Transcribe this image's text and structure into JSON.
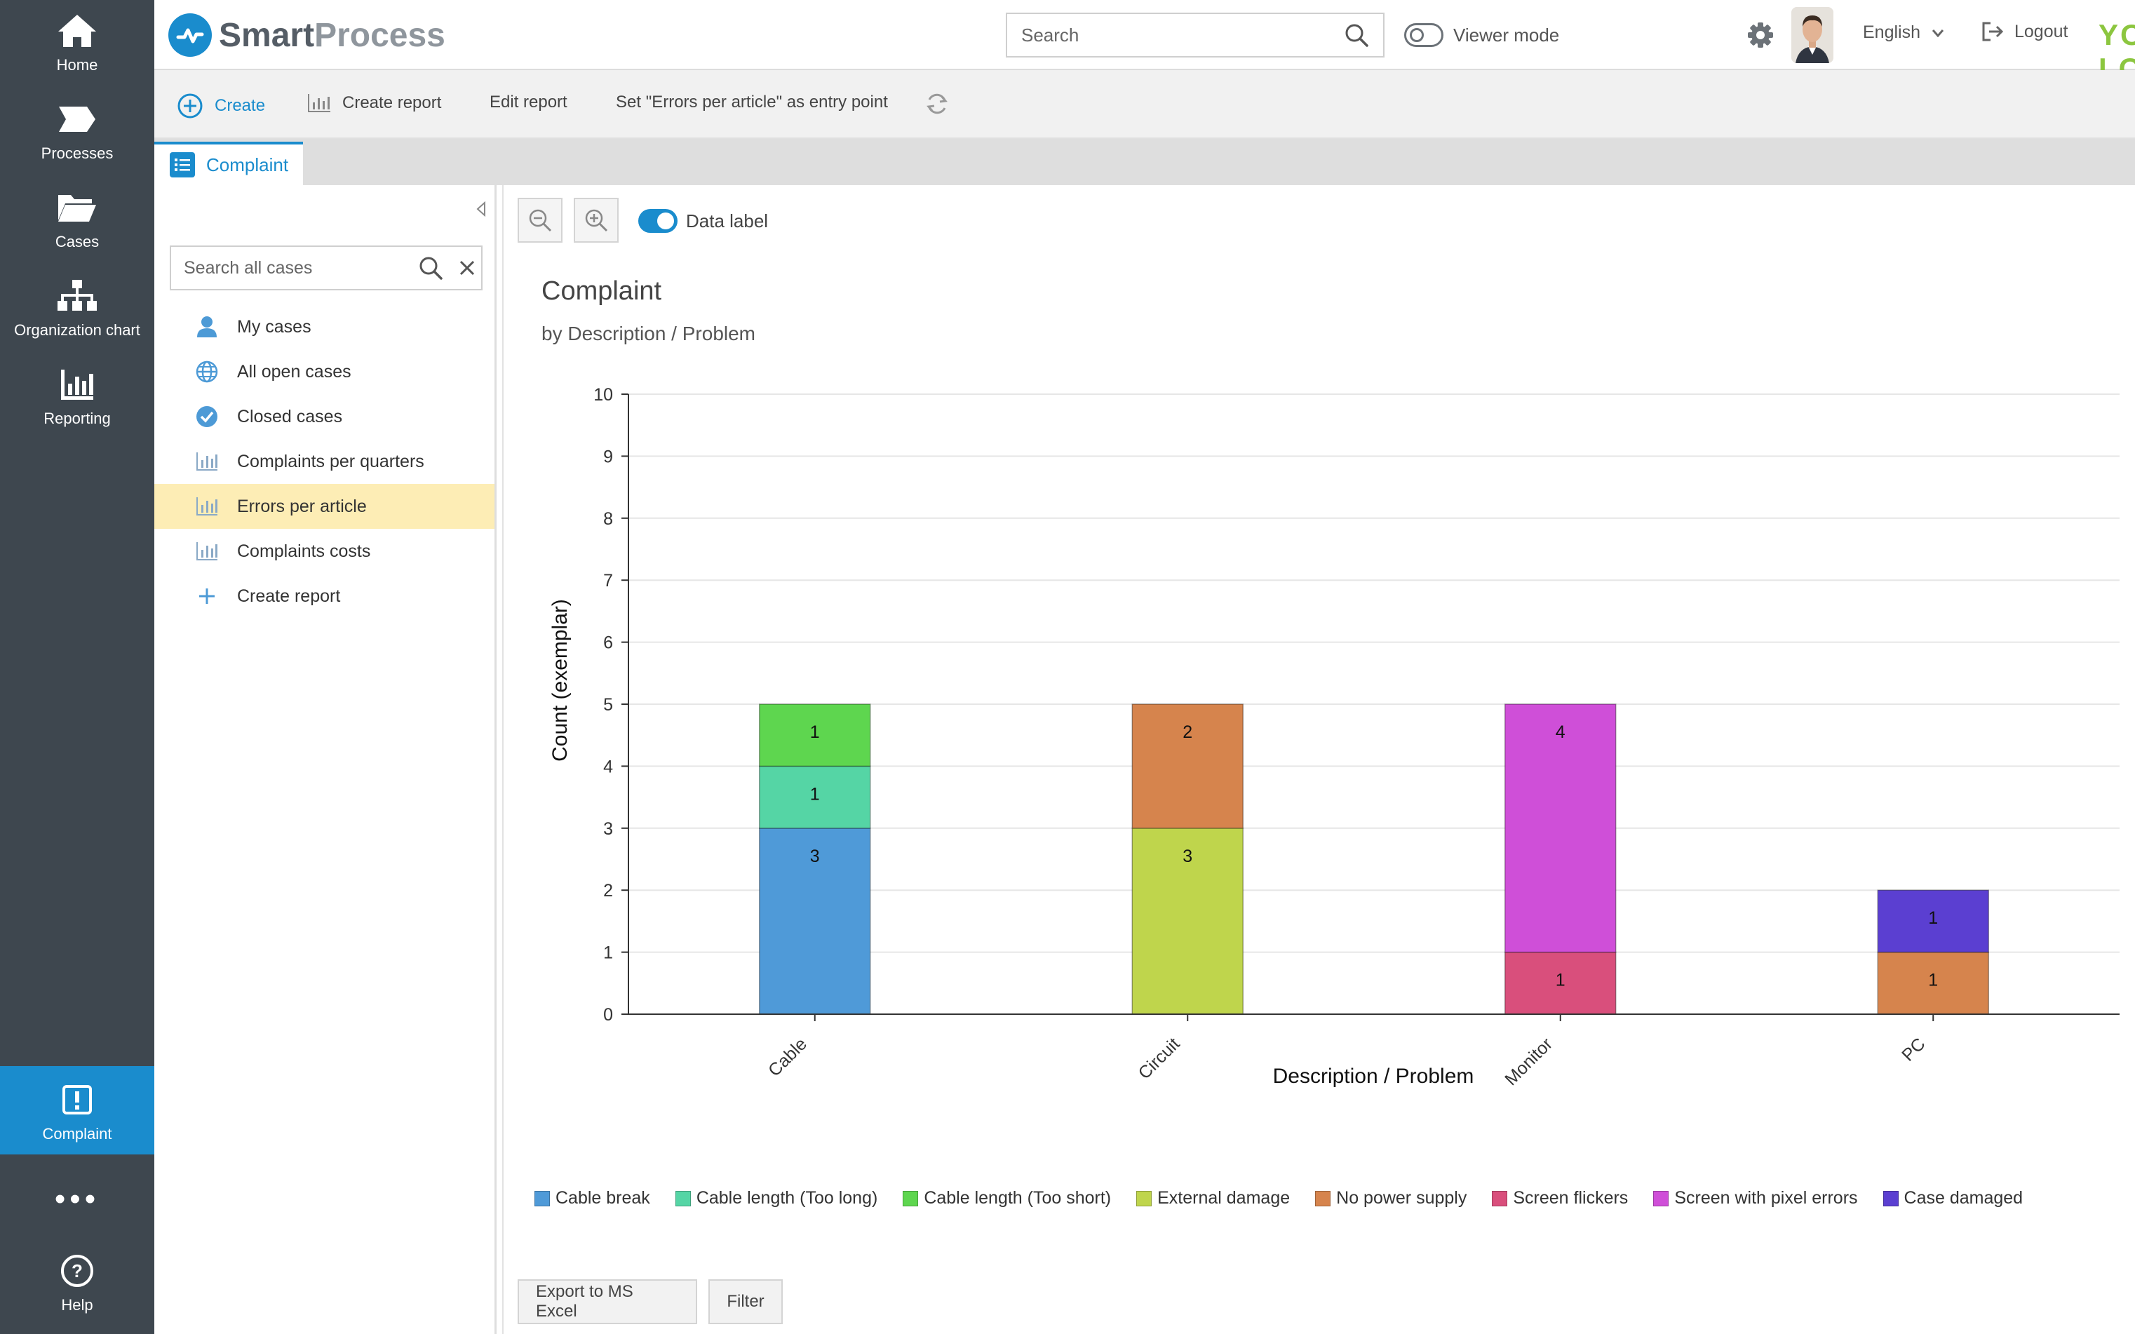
{
  "nav": {
    "items": [
      {
        "label": "Home",
        "icon": "home-icon"
      },
      {
        "label": "Processes",
        "icon": "process-arrow-icon"
      },
      {
        "label": "Cases",
        "icon": "folder-icon"
      },
      {
        "label": "Organization chart",
        "icon": "org-chart-icon"
      },
      {
        "label": "Reporting",
        "icon": "bar-chart-icon"
      }
    ],
    "active_item": {
      "label": "Complaint",
      "icon": "exclamation-icon"
    },
    "more_label": "•••",
    "help_label": "Help",
    "active_color": "#1a8ccd",
    "bg_color": "#3e474f"
  },
  "header": {
    "brand_smart": "Smart",
    "brand_process": "Process",
    "search_placeholder": "Search",
    "viewer_mode_label": "Viewer mode",
    "language": "English",
    "logout_label": "Logout",
    "logo_text": "YOUR LOGO",
    "logo_color": "#8cc63f"
  },
  "toolbar": {
    "create_label": "Create",
    "create_report_label": "Create report",
    "edit_report_label": "Edit report",
    "entry_point_label": "Set \"Errors per article\" as entry point"
  },
  "tabs": [
    {
      "label": "Complaint"
    }
  ],
  "sidebar": {
    "search_placeholder": "Search all cases",
    "items": [
      {
        "label": "My cases",
        "icon": "user-icon"
      },
      {
        "label": "All open cases",
        "icon": "globe-icon"
      },
      {
        "label": "Closed cases",
        "icon": "check-circle-icon"
      },
      {
        "label": "Complaints per quarters",
        "icon": "report-icon"
      },
      {
        "label": "Errors per article",
        "icon": "report-icon",
        "active": true
      },
      {
        "label": "Complaints costs",
        "icon": "report-icon"
      },
      {
        "label": "Create report",
        "icon": "plus-icon"
      }
    ]
  },
  "report": {
    "data_label_toggle": "Data label",
    "data_label_on": true,
    "export_label": "Export to MS Excel",
    "filter_label": "Filter"
  },
  "chart_data": {
    "type": "bar",
    "stacked": true,
    "title": "Complaint",
    "subtitle": "by Description / Problem",
    "xlabel": "Description / Problem",
    "ylabel": "Count (exemplar)",
    "ylim": [
      0,
      10
    ],
    "yticks": [
      0,
      1,
      2,
      3,
      4,
      5,
      6,
      7,
      8,
      9,
      10
    ],
    "grid": true,
    "legend_position": "bottom",
    "data_labels": true,
    "categories": [
      "Cable",
      "Circuit",
      "Monitor",
      "PC"
    ],
    "series": [
      {
        "name": "Cable break",
        "color": "#4f9ad8",
        "values": [
          3,
          0,
          0,
          0
        ]
      },
      {
        "name": "Cable length (Too long)",
        "color": "#55d5a5",
        "values": [
          1,
          0,
          0,
          0
        ]
      },
      {
        "name": "Cable length (Too short)",
        "color": "#5ed64f",
        "values": [
          1,
          0,
          0,
          0
        ]
      },
      {
        "name": "External damage",
        "color": "#bfd54c",
        "values": [
          0,
          3,
          0,
          0
        ]
      },
      {
        "name": "No power supply",
        "color": "#d6844d",
        "values": [
          0,
          2,
          0,
          1
        ]
      },
      {
        "name": "Screen flickers",
        "color": "#d94f7c",
        "values": [
          0,
          0,
          1,
          0
        ]
      },
      {
        "name": "Screen with pixel errors",
        "color": "#cf4fd8",
        "values": [
          0,
          0,
          4,
          0
        ]
      },
      {
        "name": "Case damaged",
        "color": "#5b3fd1",
        "values": [
          0,
          0,
          0,
          1
        ]
      }
    ]
  }
}
